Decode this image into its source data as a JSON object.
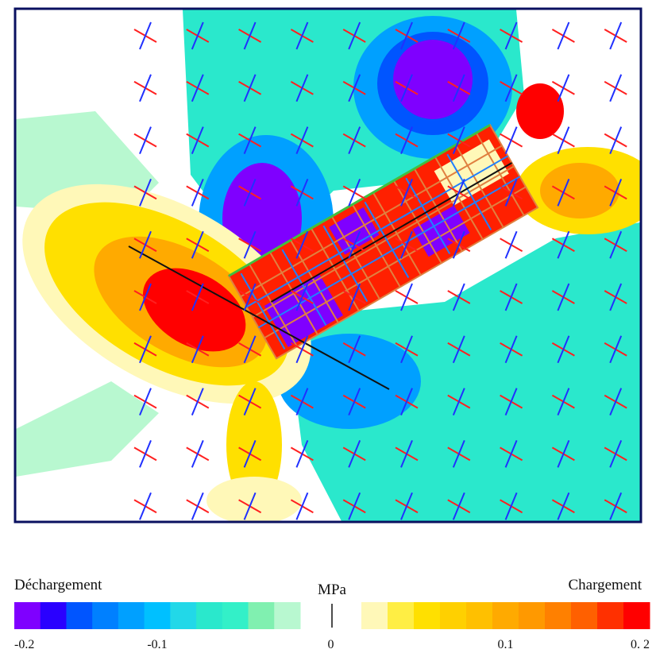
{
  "labels": {
    "left": "Déchargement",
    "center": "MPa",
    "right": "Chargement"
  },
  "colorbar": {
    "negative_colors": [
      "#7f00ff",
      "#2a00ff",
      "#0055ff",
      "#0080ff",
      "#00a0ff",
      "#00c0ff",
      "#22d8e8",
      "#2ae8cc",
      "#33f0c8",
      "#80f0b0",
      "#b8f8d0"
    ],
    "positive_colors": [
      "#fff8b8",
      "#ffee44",
      "#ffe000",
      "#ffd000",
      "#ffc000",
      "#ffaa00",
      "#ff9900",
      "#ff8000",
      "#ff6000",
      "#ff3000",
      "#ff0000"
    ],
    "ticks": [
      -0.2,
      -0.1,
      0,
      0.1,
      {
        "value": 0.2,
        "label": "0. 2"
      }
    ]
  }
}
